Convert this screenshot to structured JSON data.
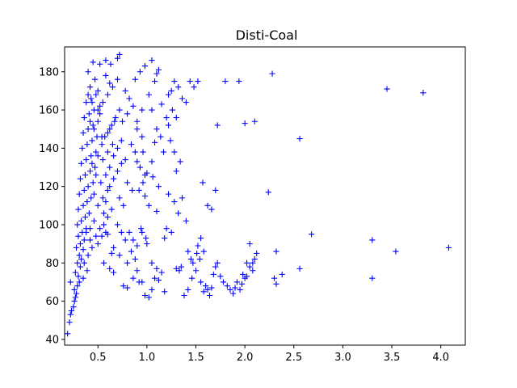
{
  "chart_data": {
    "type": "scatter",
    "title": "Disti-Coal",
    "xlabel": "",
    "ylabel": "",
    "xlim": [
      0.16,
      4.25
    ],
    "ylim": [
      37,
      193
    ],
    "x_ticks": [
      {
        "value": 0.5,
        "label": "0.5"
      },
      {
        "value": 1.0,
        "label": "1.0"
      },
      {
        "value": 1.5,
        "label": "1.5"
      },
      {
        "value": 2.0,
        "label": "2.0"
      },
      {
        "value": 2.5,
        "label": "2.5"
      },
      {
        "value": 3.0,
        "label": "3.0"
      },
      {
        "value": 3.5,
        "label": "3.5"
      },
      {
        "value": 4.0,
        "label": "4.0"
      }
    ],
    "y_ticks": [
      {
        "value": 40,
        "label": "40"
      },
      {
        "value": 60,
        "label": "60"
      },
      {
        "value": 80,
        "label": "80"
      },
      {
        "value": 100,
        "label": "100"
      },
      {
        "value": 120,
        "label": "120"
      },
      {
        "value": 140,
        "label": "140"
      },
      {
        "value": 160,
        "label": "160"
      },
      {
        "value": 180,
        "label": "180"
      }
    ],
    "grid": false,
    "marker": "+",
    "marker_color": "#0000ff",
    "series": [
      {
        "points": [
          [
            0.19,
            43
          ],
          [
            0.21,
            49
          ],
          [
            0.22,
            53
          ],
          [
            0.23,
            55
          ],
          [
            0.25,
            57
          ],
          [
            0.26,
            60
          ],
          [
            0.27,
            62
          ],
          [
            0.28,
            64
          ],
          [
            0.26,
            66
          ],
          [
            0.29,
            68
          ],
          [
            0.31,
            70
          ],
          [
            0.22,
            70
          ],
          [
            0.3,
            73
          ],
          [
            0.27,
            75
          ],
          [
            0.32,
            78
          ],
          [
            0.29,
            80
          ],
          [
            0.33,
            82
          ],
          [
            0.31,
            84
          ],
          [
            0.35,
            87
          ],
          [
            0.28,
            88
          ],
          [
            0.32,
            90
          ],
          [
            0.36,
            92
          ],
          [
            0.3,
            94
          ],
          [
            0.34,
            96
          ],
          [
            0.38,
            98
          ],
          [
            0.29,
            100
          ],
          [
            0.33,
            102
          ],
          [
            0.37,
            104
          ],
          [
            0.41,
            106
          ],
          [
            0.3,
            108
          ],
          [
            0.35,
            110
          ],
          [
            0.39,
            112
          ],
          [
            0.43,
            114
          ],
          [
            0.31,
            116
          ],
          [
            0.36,
            118
          ],
          [
            0.4,
            120
          ],
          [
            0.45,
            122
          ],
          [
            0.32,
            124
          ],
          [
            0.37,
            126
          ],
          [
            0.42,
            128
          ],
          [
            0.47,
            130
          ],
          [
            0.33,
            132
          ],
          [
            0.38,
            134
          ],
          [
            0.43,
            136
          ],
          [
            0.48,
            138
          ],
          [
            0.34,
            140
          ],
          [
            0.39,
            142
          ],
          [
            0.44,
            144
          ],
          [
            0.49,
            146
          ],
          [
            0.35,
            148
          ],
          [
            0.4,
            150
          ],
          [
            0.45,
            152
          ],
          [
            0.5,
            154
          ],
          [
            0.36,
            156
          ],
          [
            0.41,
            158
          ],
          [
            0.46,
            160
          ],
          [
            0.52,
            162
          ],
          [
            0.38,
            164
          ],
          [
            0.43,
            166
          ],
          [
            0.48,
            168
          ],
          [
            0.42,
            172
          ],
          [
            0.47,
            176
          ],
          [
            0.4,
            180
          ],
          [
            0.45,
            185
          ],
          [
            0.52,
            184
          ],
          [
            0.58,
            186
          ],
          [
            0.63,
            184
          ],
          [
            0.7,
            187
          ],
          [
            0.72,
            189
          ],
          [
            0.5,
            110
          ],
          [
            0.55,
            114
          ],
          [
            0.6,
            118
          ],
          [
            0.53,
            122
          ],
          [
            0.58,
            126
          ],
          [
            0.62,
            130
          ],
          [
            0.55,
            134
          ],
          [
            0.6,
            138
          ],
          [
            0.65,
            142
          ],
          [
            0.57,
            146
          ],
          [
            0.62,
            150
          ],
          [
            0.67,
            154
          ],
          [
            0.52,
            158
          ],
          [
            0.56,
            100
          ],
          [
            0.6,
            104
          ],
          [
            0.64,
            108
          ],
          [
            0.5,
            90
          ],
          [
            0.54,
            94
          ],
          [
            0.58,
            96
          ],
          [
            0.62,
            120
          ],
          [
            0.66,
            124
          ],
          [
            0.7,
            128
          ],
          [
            0.74,
            132
          ],
          [
            0.66,
            136
          ],
          [
            0.7,
            140
          ],
          [
            0.74,
            144
          ],
          [
            0.6,
            148
          ],
          [
            0.64,
            152
          ],
          [
            0.68,
            156
          ],
          [
            0.72,
            160
          ],
          [
            0.55,
            164
          ],
          [
            0.6,
            168
          ],
          [
            0.65,
            172
          ],
          [
            0.7,
            176
          ],
          [
            0.58,
            178
          ],
          [
            0.62,
            174
          ],
          [
            0.5,
            170
          ],
          [
            0.54,
            142
          ],
          [
            0.58,
            112
          ],
          [
            0.46,
            116
          ],
          [
            0.42,
            98
          ],
          [
            0.46,
            102
          ],
          [
            0.48,
            94
          ],
          [
            0.44,
            88
          ],
          [
            0.4,
            84
          ],
          [
            0.36,
            80
          ],
          [
            0.39,
            76
          ],
          [
            0.35,
            72
          ],
          [
            0.42,
            92
          ],
          [
            0.38,
            96
          ],
          [
            0.52,
            98
          ],
          [
            0.56,
            106
          ],
          [
            0.48,
            126
          ],
          [
            0.44,
            132
          ],
          [
            0.5,
            136
          ],
          [
            0.54,
            146
          ],
          [
            0.46,
            150
          ],
          [
            0.42,
            154
          ],
          [
            0.5,
            160
          ],
          [
            0.44,
            164
          ],
          [
            0.4,
            168
          ],
          [
            0.78,
            170
          ],
          [
            0.82,
            166
          ],
          [
            0.86,
            162
          ],
          [
            0.8,
            158
          ],
          [
            0.75,
            154
          ],
          [
            0.9,
            150
          ],
          [
            0.95,
            146
          ],
          [
            0.84,
            142
          ],
          [
            0.88,
            138
          ],
          [
            0.78,
            134
          ],
          [
            0.93,
            130
          ],
          [
            0.98,
            126
          ],
          [
            0.8,
            122
          ],
          [
            0.85,
            118
          ],
          [
            0.72,
            114
          ],
          [
            0.76,
            110
          ],
          [
            0.9,
            133
          ],
          [
            0.96,
            138
          ],
          [
            0.9,
            154
          ],
          [
            0.95,
            160
          ],
          [
            0.88,
            176
          ],
          [
            0.93,
            180
          ],
          [
            0.98,
            183
          ],
          [
            1.05,
            186
          ],
          [
            1.1,
            179
          ],
          [
            1.12,
            181
          ],
          [
            1.08,
            175
          ],
          [
            1.02,
            168
          ],
          [
            1.15,
            163
          ],
          [
            1.05,
            160
          ],
          [
            1.2,
            156
          ],
          [
            1.1,
            150
          ],
          [
            1.08,
            143
          ],
          [
            1.14,
            146
          ],
          [
            1.17,
            138
          ],
          [
            1.05,
            133
          ],
          [
            1.0,
            127
          ],
          [
            1.06,
            125
          ],
          [
            1.12,
            120
          ],
          [
            0.98,
            115
          ],
          [
            1.02,
            110
          ],
          [
            1.1,
            107
          ],
          [
            0.92,
            118
          ],
          [
            0.96,
            122
          ],
          [
            0.7,
            100
          ],
          [
            0.74,
            96
          ],
          [
            0.78,
            92
          ],
          [
            0.66,
            88
          ],
          [
            0.72,
            84
          ],
          [
            0.8,
            80
          ],
          [
            0.62,
            77
          ],
          [
            0.66,
            75
          ],
          [
            0.86,
            72
          ],
          [
            0.9,
            76
          ],
          [
            0.76,
            68
          ],
          [
            0.8,
            67
          ],
          [
            0.92,
            70
          ],
          [
            0.95,
            70
          ],
          [
            0.98,
            63
          ],
          [
            1.02,
            62
          ],
          [
            1.05,
            66
          ],
          [
            1.08,
            72
          ],
          [
            1.05,
            80
          ],
          [
            1.1,
            77
          ],
          [
            1.12,
            71
          ],
          [
            1.15,
            75
          ],
          [
            1.18,
            65
          ],
          [
            0.9,
            89
          ],
          [
            0.95,
            96
          ],
          [
            0.99,
            93
          ],
          [
            1.0,
            90
          ],
          [
            0.94,
            98
          ],
          [
            0.86,
            92
          ],
          [
            0.82,
            96
          ],
          [
            0.84,
            86
          ],
          [
            0.88,
            82
          ],
          [
            0.6,
            95
          ],
          [
            0.64,
            85
          ],
          [
            0.56,
            80
          ],
          [
            1.22,
            168
          ],
          [
            1.25,
            170
          ],
          [
            1.28,
            175
          ],
          [
            1.32,
            172
          ],
          [
            1.36,
            166
          ],
          [
            1.4,
            164
          ],
          [
            1.44,
            175
          ],
          [
            1.48,
            172
          ],
          [
            1.52,
            175
          ],
          [
            1.26,
            160
          ],
          [
            1.3,
            156
          ],
          [
            1.22,
            152
          ],
          [
            1.24,
            144
          ],
          [
            1.28,
            138
          ],
          [
            1.34,
            133
          ],
          [
            1.3,
            128
          ],
          [
            1.22,
            116
          ],
          [
            1.28,
            112
          ],
          [
            1.32,
            106
          ],
          [
            1.4,
            102
          ],
          [
            1.36,
            114
          ],
          [
            1.25,
            96
          ],
          [
            1.2,
            98
          ],
          [
            1.18,
            93
          ],
          [
            1.3,
            77
          ],
          [
            1.33,
            76
          ],
          [
            1.35,
            78
          ],
          [
            1.38,
            63
          ],
          [
            1.42,
            66
          ],
          [
            1.46,
            72
          ],
          [
            1.5,
            76
          ],
          [
            1.47,
            80
          ],
          [
            1.51,
            85
          ],
          [
            1.54,
            82
          ],
          [
            1.52,
            89
          ],
          [
            1.55,
            93
          ],
          [
            1.58,
            86
          ],
          [
            1.42,
            86
          ],
          [
            1.45,
            82
          ],
          [
            1.55,
            70
          ],
          [
            1.58,
            65
          ],
          [
            1.6,
            68
          ],
          [
            1.62,
            66
          ],
          [
            1.64,
            63
          ],
          [
            1.66,
            67
          ],
          [
            1.68,
            74
          ],
          [
            1.7,
            78
          ],
          [
            1.72,
            80
          ],
          [
            1.75,
            73
          ],
          [
            1.78,
            70
          ],
          [
            1.82,
            68
          ],
          [
            1.85,
            66
          ],
          [
            1.88,
            64
          ],
          [
            1.9,
            67
          ],
          [
            1.92,
            70
          ],
          [
            1.95,
            66
          ],
          [
            1.97,
            69
          ],
          [
            2.0,
            72
          ],
          [
            2.02,
            73
          ],
          [
            2.05,
            78
          ],
          [
            2.08,
            80
          ],
          [
            2.1,
            82
          ],
          [
            2.12,
            85
          ],
          [
            2.05,
            90
          ],
          [
            2.08,
            76
          ],
          [
            2.02,
            80
          ],
          [
            1.98,
            74
          ],
          [
            1.57,
            122
          ],
          [
            1.62,
            110
          ],
          [
            1.66,
            108
          ],
          [
            1.7,
            118
          ],
          [
            1.72,
            152
          ],
          [
            1.8,
            175
          ],
          [
            1.94,
            175
          ],
          [
            2.0,
            153
          ],
          [
            2.1,
            154
          ],
          [
            2.28,
            179
          ],
          [
            2.24,
            117
          ],
          [
            2.3,
            72
          ],
          [
            2.32,
            69
          ],
          [
            2.38,
            74
          ],
          [
            2.32,
            86
          ],
          [
            2.56,
            145
          ],
          [
            2.56,
            77
          ],
          [
            2.68,
            95
          ],
          [
            3.3,
            92
          ],
          [
            3.3,
            72
          ],
          [
            3.45,
            171
          ],
          [
            3.54,
            86
          ],
          [
            3.82,
            169
          ],
          [
            4.08,
            88
          ]
        ]
      }
    ]
  }
}
